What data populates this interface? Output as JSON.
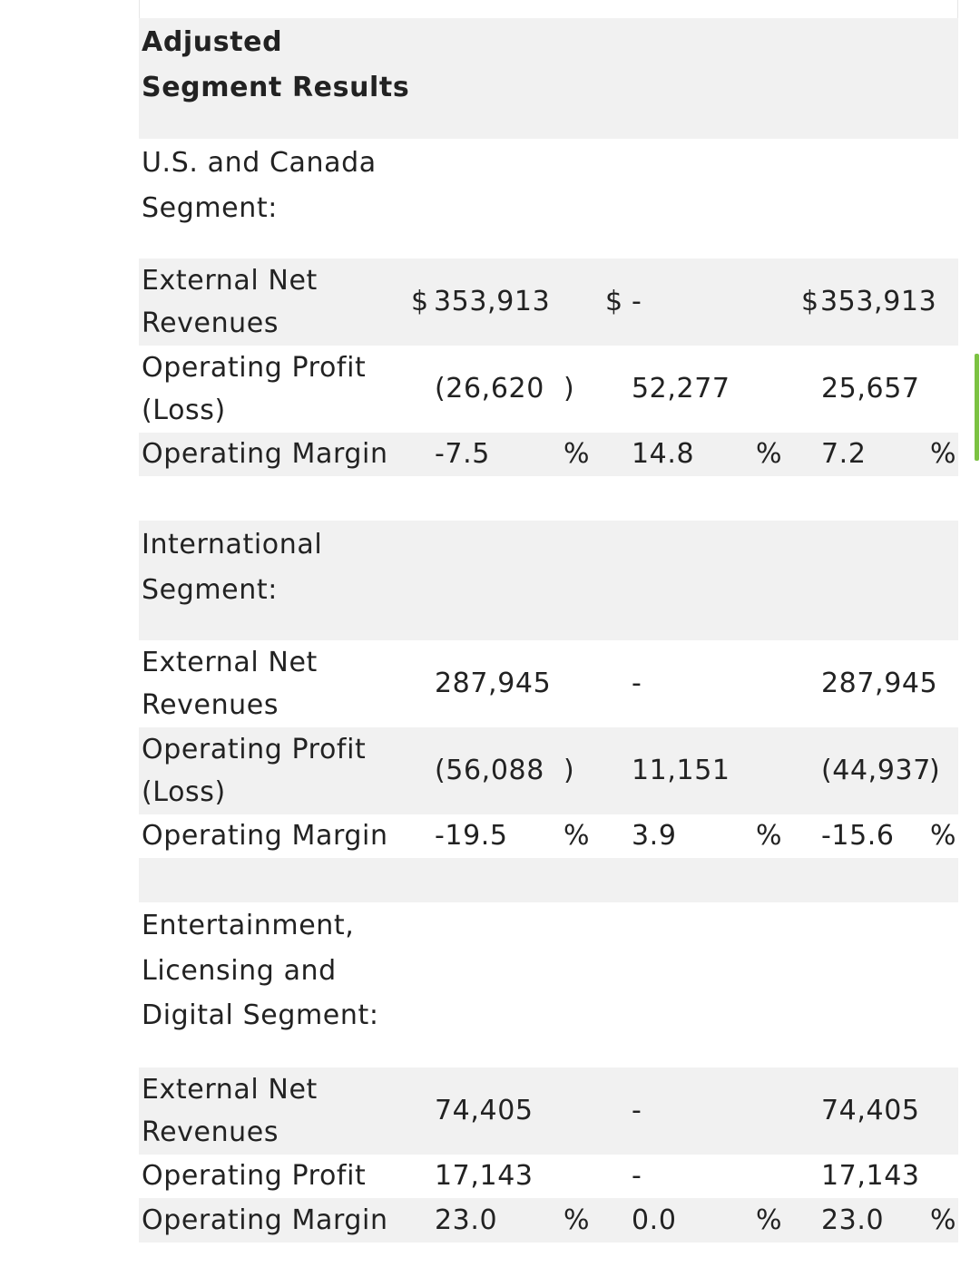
{
  "table": {
    "heading": [
      "Adjusted",
      "Segment Results"
    ],
    "sections": [
      {
        "title": [
          "U.S. and Canada",
          "Segment:"
        ],
        "external_net_revenues": {
          "label": [
            "External Net",
            "Revenues"
          ],
          "c1_prefix": "$",
          "c1": "353,913",
          "c2_prefix": "$",
          "c2": "-",
          "c3_prefix": "$",
          "c3": "353,913"
        },
        "operating_profit": {
          "label": [
            "Operating Profit",
            "(Loss)"
          ],
          "c1": "(26,620",
          "c1_close": ")",
          "c2": "52,277",
          "c3": "25,657"
        },
        "operating_margin": {
          "label": "Operating Margin",
          "c1": "-7.5",
          "c1_pct": "%",
          "c2": "14.8",
          "c2_pct": "%",
          "c3": "7.2",
          "c3_pct": "%"
        }
      },
      {
        "title": [
          "International",
          "Segment:"
        ],
        "external_net_revenues": {
          "label": [
            "External Net",
            "Revenues"
          ],
          "c1": "287,945",
          "c2": "-",
          "c3": "287,945"
        },
        "operating_profit": {
          "label": [
            "Operating Profit",
            "(Loss)"
          ],
          "c1": "(56,088",
          "c1_close": ")",
          "c2": "11,151",
          "c3": "(44,937",
          "c3_close": ")"
        },
        "operating_margin": {
          "label": "Operating Margin",
          "c1": "-19.5",
          "c1_pct": "%",
          "c2": "3.9",
          "c2_pct": "%",
          "c3": "-15.6",
          "c3_pct": "%"
        }
      },
      {
        "title": [
          "Entertainment,",
          "Licensing and",
          "Digital Segment:"
        ],
        "external_net_revenues": {
          "label": [
            "External Net",
            "Revenues"
          ],
          "c1": "74,405",
          "c2": "-",
          "c3": "74,405"
        },
        "operating_profit": {
          "label": "Operating Profit",
          "c1": "17,143",
          "c2": "-",
          "c3": "17,143"
        },
        "operating_margin": {
          "label": "Operating Margin",
          "c1": "23.0",
          "c1_pct": "%",
          "c2": "0.0",
          "c2_pct": "%",
          "c3": "23.0",
          "c3_pct": "%"
        }
      }
    ]
  },
  "colors": {
    "row_grey": "#f1f1f1",
    "row_white": "#ffffff",
    "text": "#222222",
    "scroll_indicator": "#7cc242"
  }
}
